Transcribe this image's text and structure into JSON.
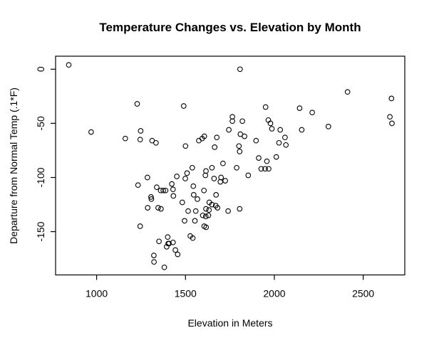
{
  "chart_data": {
    "type": "scatter",
    "title": "Temperature Changes vs. Elevation by Month",
    "xlabel": "Elevation in Meters",
    "ylabel": "Departure from Normal Temp (.1*F)",
    "x_ticks": [
      1000,
      1500,
      2000,
      2500
    ],
    "y_ticks": [
      0,
      -50,
      -100,
      -150
    ],
    "xlim": [
      769,
      2734
    ],
    "ylim": [
      -190,
      12
    ],
    "grid": false,
    "legend": "none",
    "marker": "open-circle",
    "marker_color": "#000000",
    "points": [
      [
        843,
        4
      ],
      [
        1228,
        -32
      ],
      [
        969,
        -58
      ],
      [
        1248,
        -57
      ],
      [
        1161,
        -64
      ],
      [
        1245,
        -65
      ],
      [
        1312,
        -66
      ],
      [
        1334,
        -68
      ],
      [
        1807,
        0
      ],
      [
        1490,
        -34
      ],
      [
        1951,
        -35
      ],
      [
        2412,
        -21
      ],
      [
        2659,
        -27
      ],
      [
        2142,
        -36
      ],
      [
        2213,
        -40
      ],
      [
        2650,
        -44
      ],
      [
        2662,
        -50
      ],
      [
        2304,
        -53
      ],
      [
        2154,
        -56
      ],
      [
        1764,
        -44
      ],
      [
        1764,
        -48
      ],
      [
        1820,
        -48
      ],
      [
        1966,
        -47
      ],
      [
        1978,
        -50
      ],
      [
        1986,
        -55
      ],
      [
        2033,
        -56
      ],
      [
        1744,
        -56
      ],
      [
        1809,
        -60
      ],
      [
        1832,
        -62
      ],
      [
        1897,
        -66
      ],
      [
        2060,
        -63
      ],
      [
        2026,
        -68
      ],
      [
        2065,
        -70
      ],
      [
        1575,
        -66
      ],
      [
        1594,
        -64
      ],
      [
        1606,
        -62
      ],
      [
        1676,
        -63
      ],
      [
        1500,
        -71
      ],
      [
        1664,
        -72
      ],
      [
        1801,
        -71
      ],
      [
        1805,
        -76
      ],
      [
        1912,
        -82
      ],
      [
        2011,
        -81
      ],
      [
        1958,
        -85
      ],
      [
        1711,
        -87
      ],
      [
        1538,
        -91
      ],
      [
        1649,
        -91
      ],
      [
        1788,
        -91
      ],
      [
        1926,
        -92
      ],
      [
        1948,
        -92
      ],
      [
        1968,
        -92
      ],
      [
        1451,
        -99
      ],
      [
        1509,
        -96
      ],
      [
        1499,
        -101
      ],
      [
        1615,
        -94
      ],
      [
        1612,
        -98
      ],
      [
        1661,
        -101
      ],
      [
        1700,
        -100
      ],
      [
        1696,
        -104
      ],
      [
        1724,
        -103
      ],
      [
        1853,
        -98
      ],
      [
        1286,
        -100
      ],
      [
        1233,
        -107
      ],
      [
        1338,
        -109
      ],
      [
        1360,
        -112
      ],
      [
        1375,
        -112
      ],
      [
        1388,
        -112
      ],
      [
        1423,
        -106
      ],
      [
        1430,
        -111
      ],
      [
        1432,
        -117
      ],
      [
        1306,
        -118
      ],
      [
        1308,
        -120
      ],
      [
        1287,
        -128
      ],
      [
        1346,
        -128
      ],
      [
        1362,
        -129
      ],
      [
        1544,
        -108
      ],
      [
        1604,
        -112
      ],
      [
        1546,
        -116
      ],
      [
        1567,
        -120
      ],
      [
        1672,
        -116
      ],
      [
        1482,
        -123
      ],
      [
        1634,
        -123
      ],
      [
        1649,
        -125
      ],
      [
        1670,
        -126
      ],
      [
        1615,
        -129
      ],
      [
        1632,
        -130
      ],
      [
        1680,
        -128
      ],
      [
        1740,
        -131
      ],
      [
        1805,
        -129
      ],
      [
        1558,
        -131
      ],
      [
        1515,
        -131
      ],
      [
        1597,
        -135
      ],
      [
        1614,
        -136
      ],
      [
        1629,
        -135
      ],
      [
        1495,
        -140
      ],
      [
        1553,
        -140
      ],
      [
        1605,
        -145
      ],
      [
        1616,
        -146
      ],
      [
        1245,
        -145
      ],
      [
        1400,
        -155
      ],
      [
        1527,
        -154
      ],
      [
        1541,
        -156
      ],
      [
        1407,
        -161
      ],
      [
        1430,
        -160
      ],
      [
        1443,
        -167
      ],
      [
        1456,
        -171
      ],
      [
        1351,
        -159
      ],
      [
        1403,
        -161
      ],
      [
        1394,
        -164
      ],
      [
        1322,
        -172
      ],
      [
        1323,
        -178
      ],
      [
        1381,
        -183
      ]
    ]
  }
}
